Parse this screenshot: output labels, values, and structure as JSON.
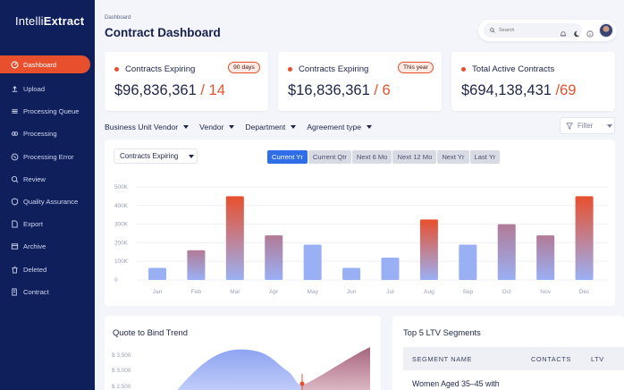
{
  "brand": {
    "prefix": "Intelli",
    "suffix": "Extract"
  },
  "sidebar": {
    "items": [
      {
        "label": "Dashboard",
        "icon": "dashboard-icon",
        "active": true
      },
      {
        "label": "Upload",
        "icon": "upload-icon"
      },
      {
        "label": "Processing Queue",
        "icon": "queue-icon"
      },
      {
        "label": "Processing",
        "icon": "processing-icon"
      },
      {
        "label": "Processing Error",
        "icon": "error-icon"
      },
      {
        "label": "Review",
        "icon": "review-icon"
      },
      {
        "label": "Quality Assurance",
        "icon": "quality-icon"
      },
      {
        "label": "Export",
        "icon": "export-icon"
      },
      {
        "label": "Archive",
        "icon": "archive-icon"
      },
      {
        "label": "Deleted",
        "icon": "trash-icon"
      },
      {
        "label": "Contract",
        "icon": "contract-icon"
      }
    ]
  },
  "header": {
    "breadcrumb": "Dashboard",
    "title": "Contract Dashboard",
    "search_placeholder": "Search"
  },
  "kpis": [
    {
      "label": "Contracts Expiring",
      "badge": "90 days",
      "value": "$96,836,361",
      "count": "14"
    },
    {
      "label": "Contracts Expiring",
      "badge": "This year",
      "value": "$16,836,361",
      "count": "6"
    },
    {
      "label": "Total Active Contracts",
      "badge": "",
      "value": "$694,138,431",
      "count": "69"
    }
  ],
  "filters": [
    "Business Unit Vendor",
    "Vendor",
    "Department",
    "Agreement type"
  ],
  "filter_button": "Filter",
  "chart": {
    "dropdown": "Contracts Expiring",
    "periods": [
      "Current Yr",
      "Current Qtr",
      "Next 6 Mo",
      "Next 12 Mo",
      "Next Yr",
      "Last Yr"
    ],
    "active_period": "Current Yr"
  },
  "chart_data": {
    "type": "bar",
    "categories": [
      "Jan",
      "Feb",
      "Mar",
      "Apr",
      "May",
      "Jun",
      "Jul",
      "Aug",
      "Sep",
      "Oct",
      "Nov",
      "Dec"
    ],
    "values": [
      65,
      160,
      450,
      240,
      190,
      65,
      120,
      325,
      190,
      300,
      240,
      450
    ],
    "highlight": [
      "low",
      "mid",
      "high",
      "mid",
      "low",
      "low",
      "low",
      "high",
      "low",
      "mid",
      "mid",
      "high"
    ],
    "yticks": [
      "0",
      "100K",
      "200K",
      "300K",
      "400K",
      "500K"
    ],
    "ylim": [
      0,
      500
    ],
    "colors": {
      "low": "#9ab0f5",
      "mid_top": "#b27a96",
      "high_top": "#e8502d",
      "bottom": "#9ab0f5"
    }
  },
  "trend": {
    "title": "Quote to Bind Trend",
    "yticks": [
      "$ 3,500",
      "$ 3,000",
      "$ 2,500"
    ]
  },
  "ltv": {
    "title": "Top 5 LTV Segments",
    "columns": [
      "SEGMENT NAME",
      "CONTACTS",
      "LTV"
    ],
    "first_row": "Women Aged 35–45 with"
  }
}
